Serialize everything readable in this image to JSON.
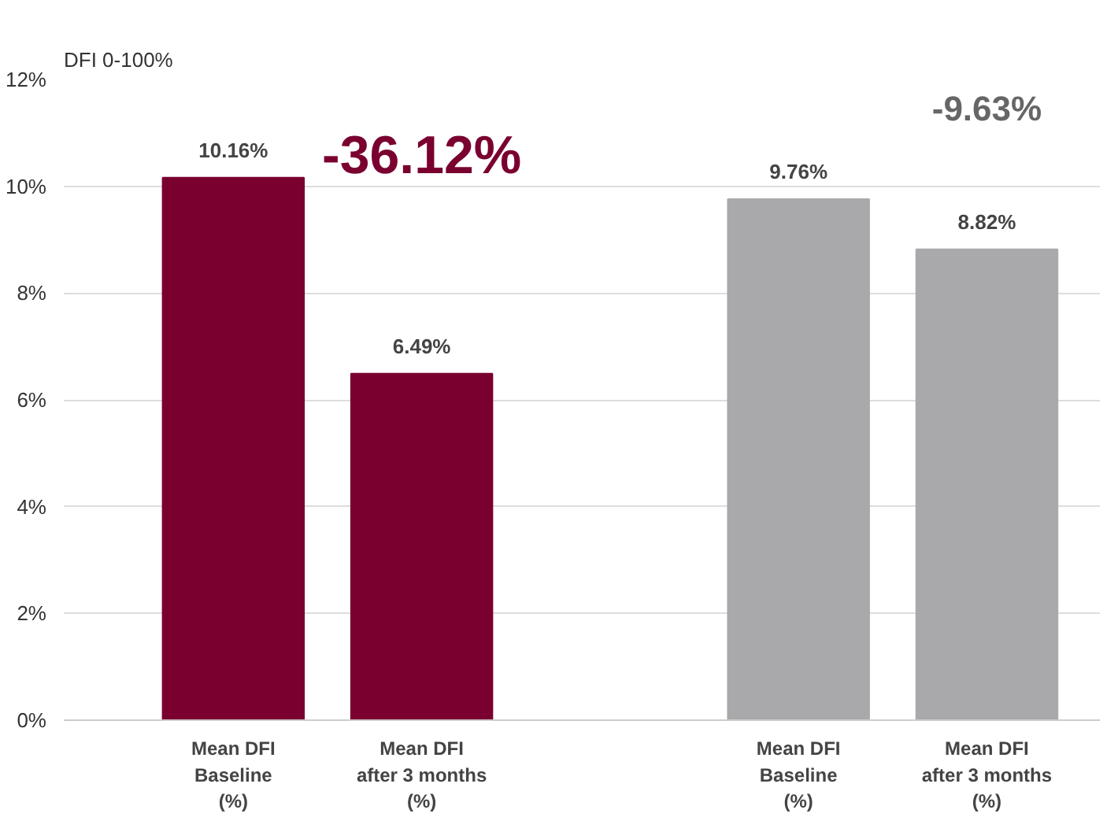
{
  "chart_data": {
    "type": "bar",
    "ylabel": "DFI 0-100%",
    "categories": [
      "Mean DFI\nBaseline\n(%)",
      "Mean DFI\nafter 3 months\n(%)",
      null,
      "Mean DFI\nBaseline\n(%)",
      "Mean DFI\nafter 3 months\n(%)"
    ],
    "values": [
      10.16,
      6.49,
      null,
      9.76,
      8.82
    ],
    "colors": [
      "#7a0030",
      "#7a0030",
      "#ffffff",
      "#a9a9ab",
      "#a9a9ab"
    ],
    "value_labels": [
      "10.16%",
      "6.49%",
      null,
      "9.76%",
      "8.82%"
    ],
    "annotations": [
      "-36.12%",
      "-9.63%"
    ],
    "ylim": [
      0,
      12
    ],
    "yticks": [
      {
        "value": 0,
        "label": "0%"
      },
      {
        "value": 2,
        "label": "2%"
      },
      {
        "value": 4,
        "label": "4%"
      },
      {
        "value": 6,
        "label": "6%"
      },
      {
        "value": 8,
        "label": "8%"
      },
      {
        "value": 10,
        "label": "10%"
      },
      {
        "value": 12,
        "label": "12%"
      }
    ],
    "grid": "y"
  }
}
